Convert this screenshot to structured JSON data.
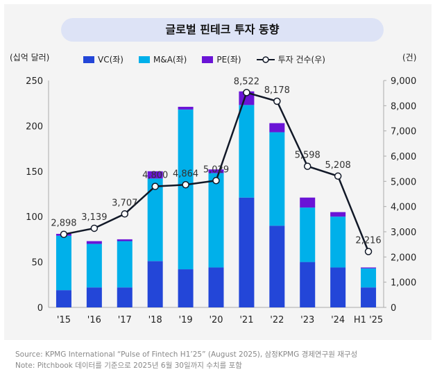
{
  "title": "글로벌 핀테크 투자 동향",
  "footer": {
    "source": "Source: KPMG International “Pulse of Fintech H1’25” (August 2025), 삼정KPMG 경제연구원 재구성",
    "note": "Note: Pitchbook 데이터를 기준으로 2025년 6월 30일까지 수치를 포함"
  },
  "chart_data": {
    "type": "bar",
    "stacked": true,
    "ylabel_left": "(십억 달러)",
    "ylabel_right": "(건)",
    "ylim_left": [
      0,
      250
    ],
    "ylim_right": [
      0,
      9000
    ],
    "yticks_left": [
      "0",
      "50",
      "100",
      "150",
      "200",
      "250"
    ],
    "yticks_right": [
      "0",
      "1,000",
      "2,000",
      "3,000",
      "4,000",
      "5,000",
      "6,000",
      "7,000",
      "8,000",
      "9,000"
    ],
    "legend_position": "top",
    "categories": [
      "'15",
      "'16",
      "'17",
      "'18",
      "'19",
      "'20",
      "'21",
      "'22",
      "'23",
      "'24",
      "H1 '25"
    ],
    "series": [
      {
        "name": "VC(좌)",
        "color": "#2346d8",
        "axis": "left",
        "values": [
          19,
          22,
          22,
          51,
          42,
          44,
          121,
          90,
          50,
          44,
          22
        ]
      },
      {
        "name": "M&A(좌)",
        "color": "#00b0ea",
        "axis": "left",
        "values": [
          60,
          48,
          51,
          91,
          176,
          104,
          102,
          103,
          60,
          56,
          21
        ]
      },
      {
        "name": "PE(좌)",
        "color": "#6a14d6",
        "axis": "left",
        "values": [
          2,
          3,
          2,
          8,
          3,
          4,
          15,
          10,
          11,
          5,
          1
        ]
      },
      {
        "name": "투자 건수(우)",
        "color": "#111827",
        "axis": "right",
        "type": "line",
        "values": [
          2898,
          3139,
          3707,
          4800,
          4864,
          5029,
          8522,
          8178,
          5598,
          5208,
          2216
        ],
        "labels": [
          "2,898",
          "3,139",
          "3,707",
          "4,800",
          "4,864",
          "5,029",
          "8,522",
          "8,178",
          "5,598",
          "5,208",
          "2,216"
        ]
      }
    ]
  }
}
